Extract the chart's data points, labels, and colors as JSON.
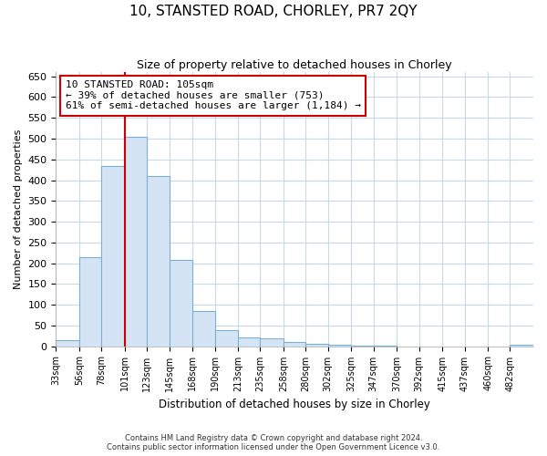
{
  "title": "10, STANSTED ROAD, CHORLEY, PR7 2QY",
  "subtitle": "Size of property relative to detached houses in Chorley",
  "xlabel": "Distribution of detached houses by size in Chorley",
  "ylabel": "Number of detached properties",
  "bin_edges": [
    33,
    56,
    78,
    101,
    123,
    145,
    168,
    190,
    213,
    235,
    258,
    280,
    302,
    325,
    347,
    370,
    392,
    415,
    437,
    460,
    482,
    505
  ],
  "bin_labels": [
    "33sqm",
    "56sqm",
    "78sqm",
    "101sqm",
    "123sqm",
    "145sqm",
    "168sqm",
    "190sqm",
    "213sqm",
    "235sqm",
    "258sqm",
    "280sqm",
    "302sqm",
    "325sqm",
    "347sqm",
    "370sqm",
    "392sqm",
    "415sqm",
    "437sqm",
    "460sqm",
    "482sqm"
  ],
  "values": [
    15,
    215,
    435,
    505,
    410,
    208,
    85,
    38,
    22,
    18,
    10,
    5,
    3,
    2,
    1,
    0,
    0,
    0,
    0,
    0,
    3
  ],
  "bar_fill_color": "#d4e4f5",
  "bar_edge_color": "#7bafd4",
  "grid_color": "#c8d8e8",
  "background_color": "#ffffff",
  "red_line_x": 101,
  "annotation_line1": "10 STANSTED ROAD: 105sqm",
  "annotation_line2": "← 39% of detached houses are smaller (753)",
  "annotation_line3": "61% of semi-detached houses are larger (1,184) →",
  "annotation_box_facecolor": "#ffffff",
  "annotation_box_edgecolor": "#cc0000",
  "ylim": [
    0,
    660
  ],
  "yticks": [
    0,
    50,
    100,
    150,
    200,
    250,
    300,
    350,
    400,
    450,
    500,
    550,
    600,
    650
  ],
  "footer_line1": "Contains HM Land Registry data © Crown copyright and database right 2024.",
  "footer_line2": "Contains public sector information licensed under the Open Government Licence v3.0."
}
